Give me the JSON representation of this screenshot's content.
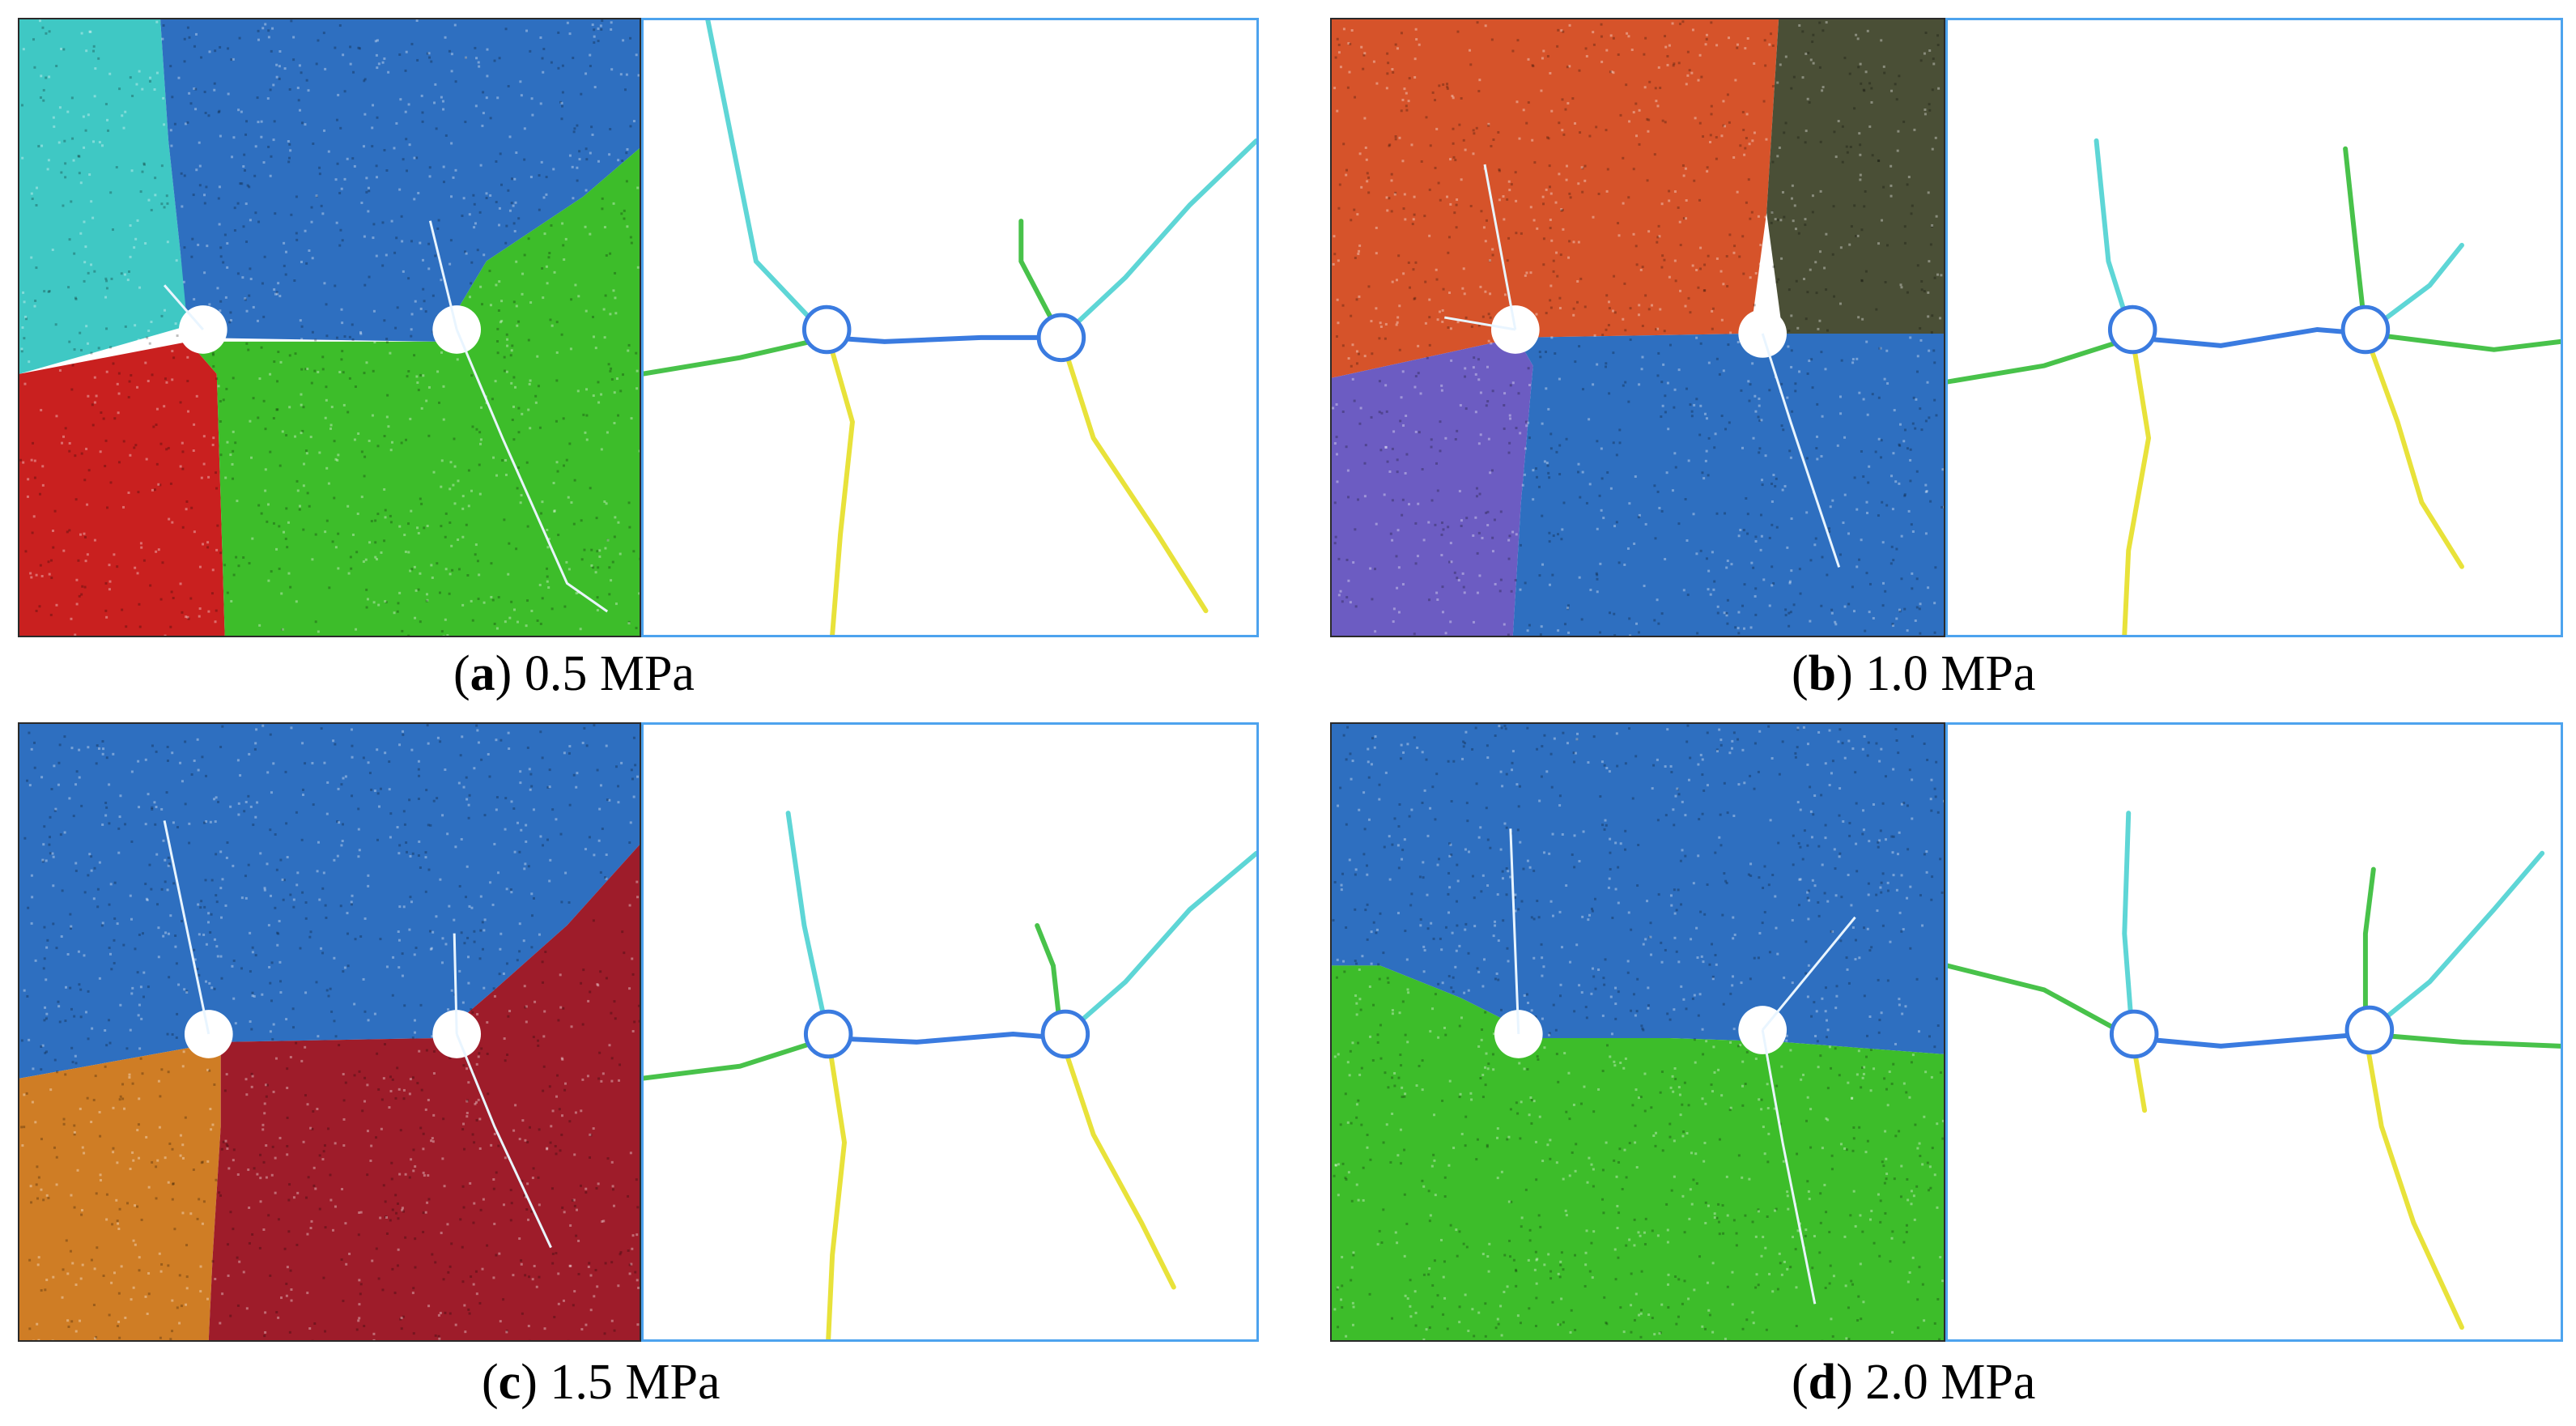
{
  "figure": {
    "panels": [
      {
        "letter": "a",
        "value": "0.5 MPa",
        "colors": {
          "top_left": "#3fc8c4",
          "top_right": "#2e6fc0",
          "bottom_left": "#c9201f",
          "bottom_right": "#3dbd2a"
        }
      },
      {
        "letter": "b",
        "value": "1.0 MPa",
        "colors": {
          "top_left": "#d6532a",
          "top_right": "#4a4f36",
          "bottom_left": "#6c5cc2",
          "bottom_right": "#2e6fc0"
        }
      },
      {
        "letter": "c",
        "value": "1.5 MPa",
        "colors": {
          "top": "#2e6fc0",
          "bottom_left": "#cf7d25",
          "bottom_right": "#9e1c2a"
        }
      },
      {
        "letter": "d",
        "value": "2.0 MPa",
        "colors": {
          "top": "#2e6fc0",
          "bottom": "#3dbd2a"
        }
      }
    ],
    "crack_palette": [
      "#3a7be0",
      "#48c24a",
      "#e8e23a",
      "#5ed6d6",
      "#e04b3a",
      "#8a4ad6"
    ],
    "hole_color": "#ffffff",
    "crack_frame_color": "#4da3ee"
  }
}
